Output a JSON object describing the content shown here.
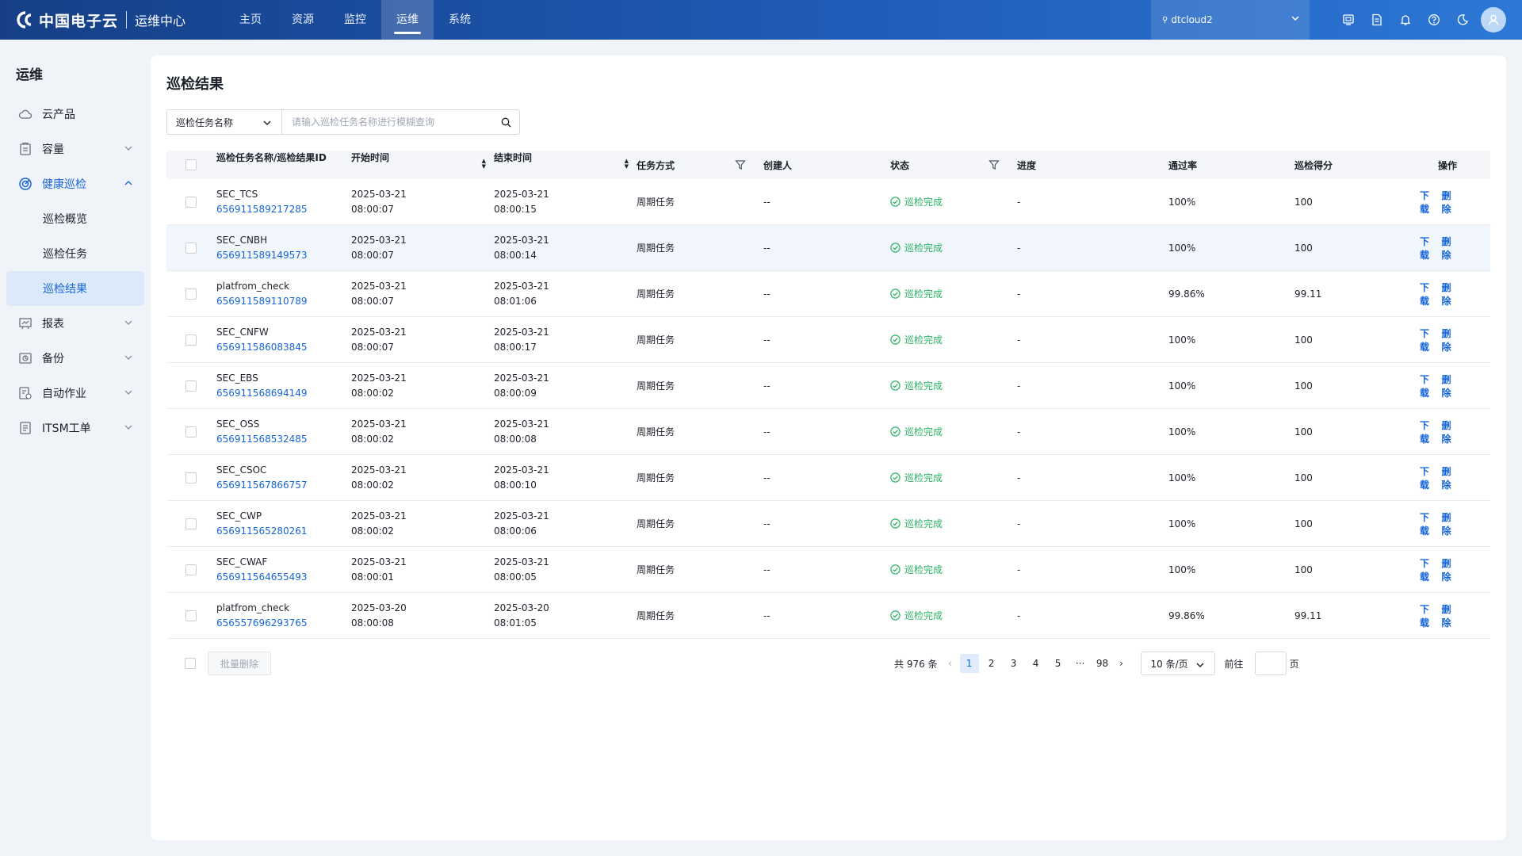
{
  "header": {
    "brand": "中国电子云",
    "center": "运维中心",
    "nav": [
      "主页",
      "资源",
      "监控",
      "运维",
      "系统"
    ],
    "active_nav": "运维",
    "region": "dtcloud2"
  },
  "sidebar": {
    "title": "运维",
    "items": [
      {
        "label": "云产品",
        "icon": "cloud-icon"
      },
      {
        "label": "容量",
        "icon": "capacity-icon"
      },
      {
        "label": "健康巡检",
        "icon": "health-check-icon"
      },
      {
        "label": "巡检概览"
      },
      {
        "label": "巡检任务"
      },
      {
        "label": "巡检结果"
      },
      {
        "label": "报表",
        "icon": "report-icon"
      },
      {
        "label": "备份",
        "icon": "backup-icon"
      },
      {
        "label": "自动作业",
        "icon": "automation-icon"
      },
      {
        "label": "ITSM工单",
        "icon": "ticket-icon"
      }
    ]
  },
  "main": {
    "title": "巡检结果",
    "search": {
      "field": "巡检任务名称",
      "placeholder": "请输入巡检任务名称进行模糊查询"
    },
    "columns": [
      "巡检任务名称/巡检结果ID",
      "开始时间",
      "结束时间",
      "任务方式",
      "创建人",
      "状态",
      "进度",
      "通过率",
      "巡检得分",
      "操作"
    ],
    "rows": [
      {
        "name": "SEC_TCS",
        "id": "656911589217285",
        "start_date": "2025-03-21",
        "start_time": "08:00:07",
        "end_date": "2025-03-21",
        "end_time": "08:00:15",
        "mode": "周期任务",
        "creator": "--",
        "status": "巡检完成",
        "progress": "-",
        "rate": "100%",
        "score": "100",
        "op_download": "下载",
        "op_delete": "删除"
      },
      {
        "name": "SEC_CNBH",
        "id": "656911589149573",
        "start_date": "2025-03-21",
        "start_time": "08:00:07",
        "end_date": "2025-03-21",
        "end_time": "08:00:14",
        "mode": "周期任务",
        "creator": "--",
        "status": "巡检完成",
        "progress": "-",
        "rate": "100%",
        "score": "100",
        "op_download": "下载",
        "op_delete": "删除"
      },
      {
        "name": "platfrom_check",
        "id": "656911589110789",
        "start_date": "2025-03-21",
        "start_time": "08:00:07",
        "end_date": "2025-03-21",
        "end_time": "08:01:06",
        "mode": "周期任务",
        "creator": "--",
        "status": "巡检完成",
        "progress": "-",
        "rate": "99.86%",
        "score": "99.11",
        "op_download": "下载",
        "op_delete": "删除"
      },
      {
        "name": "SEC_CNFW",
        "id": "656911586083845",
        "start_date": "2025-03-21",
        "start_time": "08:00:07",
        "end_date": "2025-03-21",
        "end_time": "08:00:17",
        "mode": "周期任务",
        "creator": "--",
        "status": "巡检完成",
        "progress": "-",
        "rate": "100%",
        "score": "100",
        "op_download": "下载",
        "op_delete": "删除"
      },
      {
        "name": "SEC_EBS",
        "id": "656911568694149",
        "start_date": "2025-03-21",
        "start_time": "08:00:02",
        "end_date": "2025-03-21",
        "end_time": "08:00:09",
        "mode": "周期任务",
        "creator": "--",
        "status": "巡检完成",
        "progress": "-",
        "rate": "100%",
        "score": "100",
        "op_download": "下载",
        "op_delete": "删除"
      },
      {
        "name": "SEC_OSS",
        "id": "656911568532485",
        "start_date": "2025-03-21",
        "start_time": "08:00:02",
        "end_date": "2025-03-21",
        "end_time": "08:00:08",
        "mode": "周期任务",
        "creator": "--",
        "status": "巡检完成",
        "progress": "-",
        "rate": "100%",
        "score": "100",
        "op_download": "下载",
        "op_delete": "删除"
      },
      {
        "name": "SEC_CSOC",
        "id": "656911567866757",
        "start_date": "2025-03-21",
        "start_time": "08:00:02",
        "end_date": "2025-03-21",
        "end_time": "08:00:10",
        "mode": "周期任务",
        "creator": "--",
        "status": "巡检完成",
        "progress": "-",
        "rate": "100%",
        "score": "100",
        "op_download": "下载",
        "op_delete": "删除"
      },
      {
        "name": "SEC_CWP",
        "id": "656911565280261",
        "start_date": "2025-03-21",
        "start_time": "08:00:02",
        "end_date": "2025-03-21",
        "end_time": "08:00:06",
        "mode": "周期任务",
        "creator": "--",
        "status": "巡检完成",
        "progress": "-",
        "rate": "100%",
        "score": "100",
        "op_download": "下载",
        "op_delete": "删除"
      },
      {
        "name": "SEC_CWAF",
        "id": "656911564655493",
        "start_date": "2025-03-21",
        "start_time": "08:00:01",
        "end_date": "2025-03-21",
        "end_time": "08:00:05",
        "mode": "周期任务",
        "creator": "--",
        "status": "巡检完成",
        "progress": "-",
        "rate": "100%",
        "score": "100",
        "op_download": "下载",
        "op_delete": "删除"
      },
      {
        "name": "platfrom_check",
        "id": "656557696293765",
        "start_date": "2025-03-20",
        "start_time": "08:00:08",
        "end_date": "2025-03-20",
        "end_time": "08:01:05",
        "mode": "周期任务",
        "creator": "--",
        "status": "巡检完成",
        "progress": "-",
        "rate": "99.86%",
        "score": "99.11",
        "op_download": "下载",
        "op_delete": "删除"
      }
    ],
    "batch_delete": "批量删除",
    "pagination": {
      "total": "共 976 条",
      "pages": [
        "1",
        "2",
        "3",
        "4",
        "5",
        "···",
        "98"
      ],
      "current": "1",
      "page_size": "10 条/页",
      "goto_label": "前往",
      "goto_unit": "页"
    }
  },
  "colors": {
    "accent": "#1665d8",
    "success": "#2bb364",
    "header_start": "#163f86",
    "header_end": "#2d78d6"
  }
}
